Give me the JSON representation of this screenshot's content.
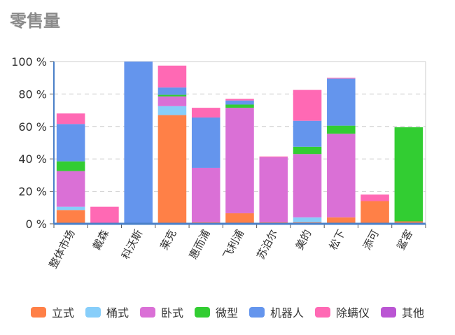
{
  "title": "零售量",
  "chart_data": {
    "type": "bar",
    "stacked": true,
    "title": "零售量",
    "xlabel": "",
    "ylabel": "",
    "ylim": [
      0,
      100
    ],
    "y_ticks": [
      "0 %",
      "20 %",
      "40 %",
      "60 %",
      "80 %",
      "100 %"
    ],
    "grid": true,
    "legend_position": "bottom",
    "categories": [
      "整体市场",
      "戴森",
      "科沃斯",
      "莱克",
      "惠而浦",
      "飞利浦",
      "苏泊尔",
      "美的",
      "松下",
      "添可",
      "鲨客"
    ],
    "series": [
      {
        "name": "立式",
        "color": "#ff8047",
        "values": [
          8.5,
          0,
          0,
          67,
          1,
          6.5,
          1,
          1,
          4,
          14,
          1.5
        ]
      },
      {
        "name": "桶式",
        "color": "#87cefa",
        "values": [
          2,
          0,
          0,
          5.5,
          0,
          0,
          0,
          3,
          0,
          0,
          0
        ]
      },
      {
        "name": "卧式",
        "color": "#da70d6",
        "values": [
          22,
          0,
          0,
          6,
          33.5,
          65,
          40,
          39,
          51.5,
          0,
          0
        ]
      },
      {
        "name": "微型",
        "color": "#32cd32",
        "values": [
          6,
          0,
          0,
          1,
          0,
          2,
          0,
          4.5,
          5,
          0,
          58
        ]
      },
      {
        "name": "机器人",
        "color": "#6495ed",
        "values": [
          23,
          0,
          100,
          4.5,
          31,
          2.5,
          0,
          16,
          29,
          0,
          0
        ]
      },
      {
        "name": "除螨仪",
        "color": "#ff69b4",
        "values": [
          6.5,
          10.5,
          0,
          13.5,
          6,
          1,
          0.5,
          19,
          0.5,
          4,
          0
        ]
      },
      {
        "name": "其他",
        "color": "#ba55d3",
        "values": [
          0,
          0,
          0,
          0,
          0,
          0,
          0,
          0,
          0,
          0,
          0
        ]
      }
    ]
  }
}
